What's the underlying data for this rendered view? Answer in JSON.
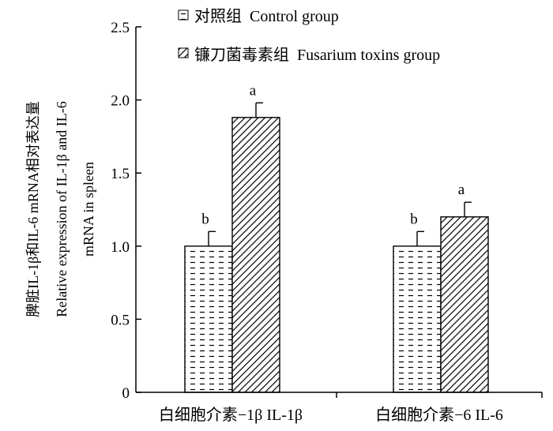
{
  "chart_data": {
    "type": "bar",
    "ylabel_lines": [
      "脾脏IL-1β和IL-6 mRNA相对表达量",
      "Relative expression of IL-1β and IL-6",
      "mRNA in spleen"
    ],
    "xlabel": "",
    "ylim": [
      0,
      2.5
    ],
    "yticks": [
      "0",
      "0.5",
      "1.0",
      "1.5",
      "2.0",
      "2.5"
    ],
    "categories": [
      "白细胞介素−1β IL-1β",
      "白细胞介素−6 IL-6"
    ],
    "series": [
      {
        "name": "对照组  Control group",
        "values": [
          1.0,
          1.0
        ],
        "errors": [
          0.1,
          0.1
        ],
        "significance": [
          "b",
          "b"
        ],
        "pattern": "dashed-horizontal"
      },
      {
        "name": "镰刀菌毒素组  Fusarium toxins group",
        "values": [
          1.88,
          1.2
        ],
        "errors": [
          0.1,
          0.1
        ],
        "significance": [
          "a",
          "a"
        ],
        "pattern": "diagonal-hatch"
      }
    ],
    "grid": false,
    "legend_position": "top-left"
  }
}
